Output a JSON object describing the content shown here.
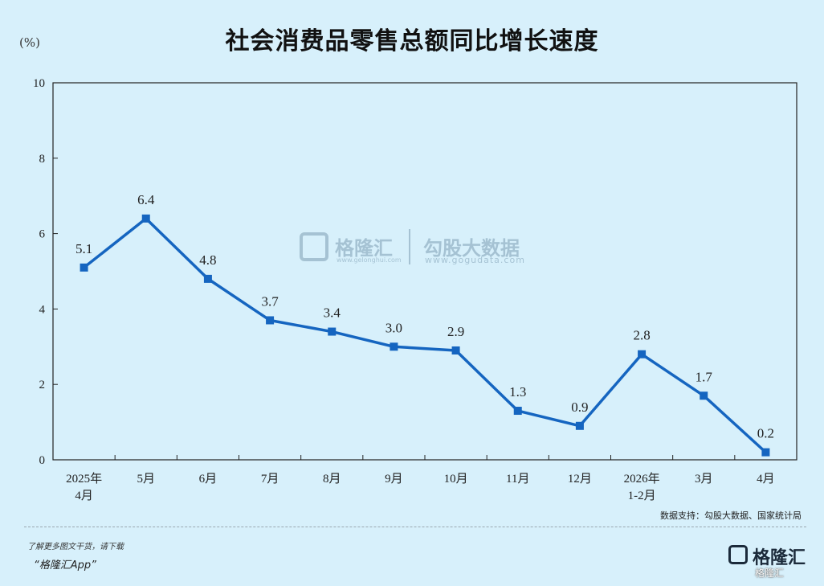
{
  "header": {
    "title": "社会消费品零售总额同比增长速度",
    "unit": "(%)"
  },
  "watermark": {
    "left_brand": "格隆汇",
    "left_url": "www.gelonghui.com",
    "right_brand": "勾股大数据",
    "right_url": "www.gogudata.com"
  },
  "source": "数据支持：勾股大数据、国家统计局",
  "footer": {
    "note": "了解更多图文干货，请下载",
    "app": "“格隆汇App”",
    "logo_text": "格隆汇",
    "logo_small": "格隆汇"
  },
  "colors": {
    "background": "#d7f0fb",
    "line": "#1565c0",
    "axis": "#222222"
  },
  "chart_data": {
    "type": "line",
    "title": "社会消费品零售总额同比增长速度",
    "ylabel": "(%)",
    "xlabel": "",
    "categories": [
      [
        "2025年",
        "4月"
      ],
      [
        "5月"
      ],
      [
        "6月"
      ],
      [
        "7月"
      ],
      [
        "8月"
      ],
      [
        "9月"
      ],
      [
        "10月"
      ],
      [
        "11月"
      ],
      [
        "12月"
      ],
      [
        "2026年",
        "1-2月"
      ],
      [
        "3月"
      ],
      [
        "4月"
      ]
    ],
    "values": [
      5.1,
      6.4,
      4.8,
      3.7,
      3.4,
      3.0,
      2.9,
      1.3,
      0.9,
      2.8,
      1.7,
      0.2
    ],
    "value_labels": [
      "5.1",
      "6.4",
      "4.8",
      "3.7",
      "3.4",
      "3.0",
      "2.9",
      "1.3",
      "0.9",
      "2.8",
      "1.7",
      "0.2"
    ],
    "ylim": [
      0,
      10
    ],
    "yticks": [
      "0",
      "2",
      "4",
      "6",
      "8",
      "10"
    ],
    "grid": false,
    "legend": "none",
    "marker": "square"
  }
}
